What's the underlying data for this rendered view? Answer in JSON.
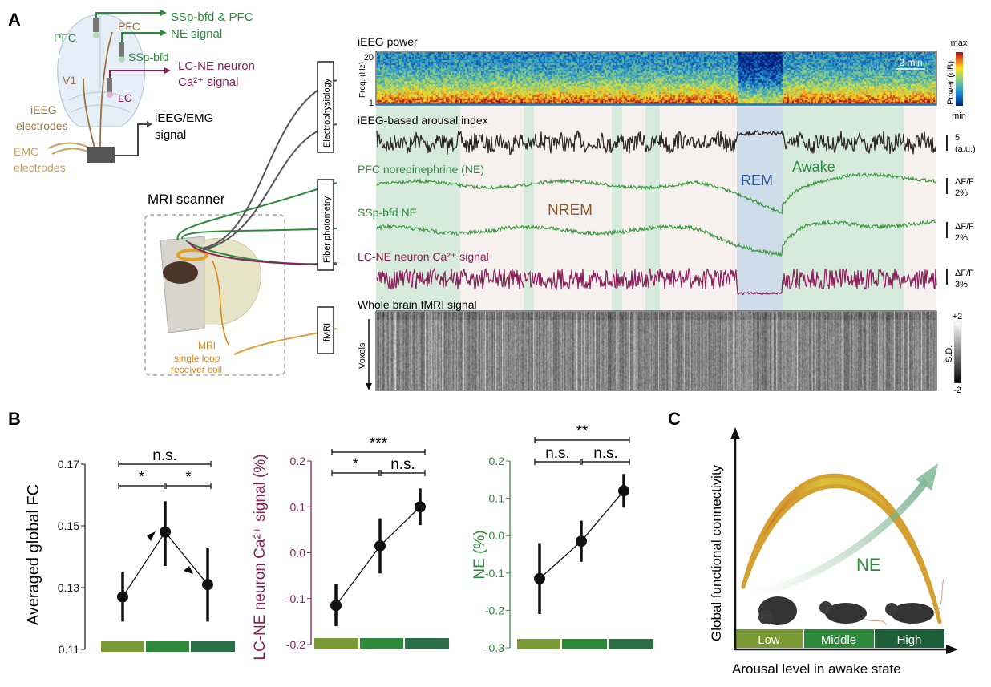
{
  "panel_labels": {
    "a": "A",
    "b": "B",
    "c": "C"
  },
  "colors": {
    "green": "#2e8b3e",
    "maroon": "#8b1f5a",
    "brown": "#a0703a",
    "orange": "#e08a1a",
    "rem_blue": "#2b5f9e",
    "awake_band": "#d6ebdc",
    "nrem_band": "#f6f1ee",
    "rem_band": "#cfdce9",
    "low": "#7a9a35",
    "middle": "#2d8a3a",
    "high": "#2c6e48"
  },
  "schematic": {
    "ssp_pfc_line1": "SSp-bfd & PFC",
    "ssp_pfc_line2": "NE signal",
    "pfc_green": "PFC",
    "pfc_brown": "PFC",
    "sspbfd": "SSp-bfd",
    "lc_line1": "LC-NE neuron",
    "lc_line2": "Ca²⁺ signal",
    "v1": "V1",
    "lc": "LC",
    "ieeg_line1": "iEEG",
    "ieeg_line2": "electrodes",
    "emg_line1": "EMG",
    "emg_line2": "electrodes",
    "signal_line1": "iEEG/EMG",
    "signal_line2": "signal",
    "mri_scanner": "MRI scanner",
    "coil_line1": "MRI",
    "coil_line2": "single loop",
    "coil_line3": "receiver coil",
    "box_electrophysiology": "Electrophysiology",
    "box_fiber": "Fiber photometry",
    "box_fmri": "fMRI"
  },
  "recording": {
    "ieeg_power": "iEEG power",
    "freq_label": "Freq. (Hz)",
    "freq_max": "20",
    "freq_min": "1",
    "time_scale": "2 min",
    "power_label": "Power (dB)",
    "power_max": "max",
    "power_min": "min",
    "arousal_label": "iEEG-based arousal index",
    "pfc_label": "PFC norepinephrine (NE)",
    "ssp_label": "SSp-bfd NE",
    "lc_label": "LC-NE neuron Ca²⁺ signal",
    "fmri_label": "Whole brain fMRI signal",
    "voxels": "Voxels",
    "state_nrem": "NREM",
    "state_rem": "REM",
    "state_awake": "Awake",
    "scale_arousal_1": "5",
    "scale_arousal_2": "(a.u.)",
    "scale_pfc_1": "ΔF/F",
    "scale_pfc_2": "2%",
    "scale_ssp_1": "ΔF/F",
    "scale_ssp_2": "2%",
    "scale_lc_1": "ΔF/F",
    "scale_lc_2": "3%",
    "sd_label": "S.D.",
    "sd_max": "+2",
    "sd_min": "-2",
    "spectrogram_colormap": "jet",
    "fmri_colormap": "gray"
  },
  "chart_data": [
    {
      "type": "line",
      "ylabel": "Averaged global FC",
      "ylim": [
        0.11,
        0.17
      ],
      "yticks": [
        "0.11",
        "0.13",
        "0.15",
        "0.17"
      ],
      "categories": [
        "Low",
        "Middle",
        "High"
      ],
      "values": [
        0.127,
        0.148,
        0.131
      ],
      "error_low": [
        0.119,
        0.137,
        0.119
      ],
      "error_high": [
        0.135,
        0.158,
        0.143
      ],
      "significance": [
        {
          "pair": "Low-High",
          "label": "n.s."
        },
        {
          "pair": "Low-Middle",
          "label": "*"
        },
        {
          "pair": "Middle-High",
          "label": "*"
        }
      ],
      "ylabel_color": "#000000"
    },
    {
      "type": "line",
      "ylabel": "LC-NE neuron Ca²⁺ signal (%)",
      "ylim": [
        -0.2,
        0.2
      ],
      "yticks": [
        "-0.2",
        "-0.1",
        "0.0",
        "0.1",
        "0.2"
      ],
      "categories": [
        "Low",
        "Middle",
        "High"
      ],
      "values": [
        -0.115,
        0.015,
        0.1
      ],
      "error_low": [
        -0.16,
        -0.045,
        0.06
      ],
      "error_high": [
        -0.068,
        0.075,
        0.14
      ],
      "significance": [
        {
          "pair": "Low-High",
          "label": "***"
        },
        {
          "pair": "Low-Middle",
          "label": "*"
        },
        {
          "pair": "Middle-High",
          "label": "n.s."
        }
      ],
      "ylabel_color": "#8b1f5a"
    },
    {
      "type": "line",
      "ylabel": "NE (%)",
      "ylim": [
        -0.3,
        0.2
      ],
      "yticks": [
        "-0.3",
        "-0.2",
        "-0.1",
        "0.0",
        "0.1",
        "0.2"
      ],
      "categories": [
        "Low",
        "Middle",
        "High"
      ],
      "values": [
        -0.115,
        -0.015,
        0.12
      ],
      "error_low": [
        -0.21,
        -0.07,
        0.075
      ],
      "error_high": [
        -0.02,
        0.04,
        0.165
      ],
      "significance": [
        {
          "pair": "Low-High",
          "label": "**"
        },
        {
          "pair": "Low-Middle",
          "label": "n.s."
        },
        {
          "pair": "Middle-High",
          "label": "n.s."
        }
      ],
      "ylabel_color": "#2e8b3e"
    }
  ],
  "panel_c": {
    "ylabel": "Global functional connectivity",
    "xlabel": "Arousal level in awake state",
    "ne": "NE",
    "levels": [
      "Low",
      "Middle",
      "High"
    ]
  }
}
